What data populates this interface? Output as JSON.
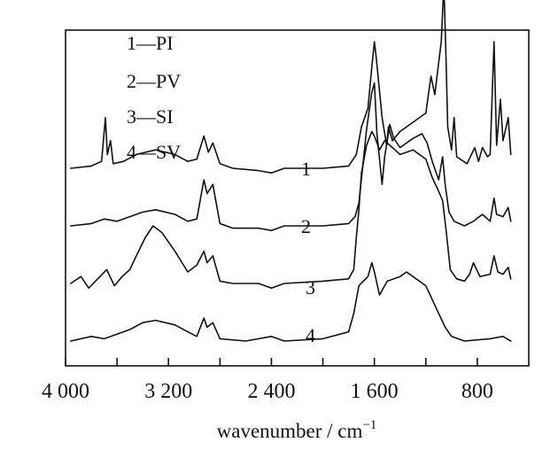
{
  "chart_data": {
    "type": "line",
    "title": "",
    "xlabel": "wavenumber / cm",
    "xlabel_superscript": "−1",
    "ylabel": "",
    "xlim": [
      4000,
      400
    ],
    "x_reversed": true,
    "grid": false,
    "legend_position": "top-left",
    "x_ticks": [
      {
        "value": 4000,
        "label": "4 000"
      },
      {
        "value": 3200,
        "label": "3 200"
      },
      {
        "value": 2400,
        "label": "2 400"
      },
      {
        "value": 1600,
        "label": "1 600"
      },
      {
        "value": 800,
        "label": "800"
      }
    ],
    "legend": [
      "1—PI",
      "2—PV",
      "3—SI",
      "4—SV"
    ],
    "series": [
      {
        "name": "1",
        "baseline": 0.6,
        "points": [
          [
            3960,
            0
          ],
          [
            3800,
            0.01
          ],
          [
            3720,
            0.03
          ],
          [
            3690,
            0.22
          ],
          [
            3675,
            0.06
          ],
          [
            3650,
            0.12
          ],
          [
            3630,
            0.02
          ],
          [
            3550,
            0.03
          ],
          [
            3450,
            0.06
          ],
          [
            3300,
            0.08
          ],
          [
            3150,
            0.06
          ],
          [
            3050,
            0.03
          ],
          [
            2980,
            0.04
          ],
          [
            2925,
            0.14
          ],
          [
            2890,
            0.07
          ],
          [
            2855,
            0.11
          ],
          [
            2800,
            0.02
          ],
          [
            2700,
            0
          ],
          [
            2500,
            -0.01
          ],
          [
            2400,
            -0.02
          ],
          [
            2300,
            0
          ],
          [
            2000,
            0
          ],
          [
            1800,
            0.01
          ],
          [
            1740,
            0.06
          ],
          [
            1700,
            0.18
          ],
          [
            1650,
            0.26
          ],
          [
            1620,
            0.44
          ],
          [
            1600,
            0.55
          ],
          [
            1585,
            0.48
          ],
          [
            1540,
            0.22
          ],
          [
            1505,
            0.1
          ],
          [
            1490,
            0.18
          ],
          [
            1460,
            0.12
          ],
          [
            1400,
            0.16
          ],
          [
            1300,
            0.2
          ],
          [
            1200,
            0.24
          ],
          [
            1160,
            0.4
          ],
          [
            1130,
            0.32
          ],
          [
            1080,
            0.55
          ],
          [
            1060,
            0.8
          ],
          [
            1045,
            0.52
          ],
          [
            1030,
            0.18
          ],
          [
            1000,
            0.08
          ],
          [
            980,
            0.22
          ],
          [
            960,
            0.05
          ],
          [
            880,
            0.02
          ],
          [
            820,
            0.09
          ],
          [
            790,
            0.03
          ],
          [
            760,
            0.09
          ],
          [
            720,
            0.05
          ],
          [
            700,
            0.06
          ],
          [
            670,
            0.55
          ],
          [
            650,
            0.1
          ],
          [
            620,
            0.3
          ],
          [
            600,
            0.12
          ],
          [
            560,
            0.22
          ],
          [
            540,
            0.06
          ]
        ]
      },
      {
        "name": "2",
        "baseline": 0.85,
        "points": [
          [
            3960,
            0
          ],
          [
            3800,
            0.01
          ],
          [
            3700,
            0.03
          ],
          [
            3600,
            0.02
          ],
          [
            3500,
            0.04
          ],
          [
            3400,
            0.06
          ],
          [
            3300,
            0.07
          ],
          [
            3150,
            0.05
          ],
          [
            3050,
            0.02
          ],
          [
            2980,
            0.03
          ],
          [
            2925,
            0.2
          ],
          [
            2900,
            0.14
          ],
          [
            2855,
            0.18
          ],
          [
            2800,
            0.01
          ],
          [
            2700,
            -0.01
          ],
          [
            2500,
            -0.01
          ],
          [
            2400,
            -0.02
          ],
          [
            2300,
            0
          ],
          [
            2000,
            0
          ],
          [
            1800,
            0.01
          ],
          [
            1750,
            0.04
          ],
          [
            1720,
            0.1
          ],
          [
            1690,
            0.26
          ],
          [
            1660,
            0.42
          ],
          [
            1620,
            0.58
          ],
          [
            1600,
            0.62
          ],
          [
            1580,
            0.4
          ],
          [
            1540,
            0.18
          ],
          [
            1520,
            0.3
          ],
          [
            1480,
            0.44
          ],
          [
            1450,
            0.38
          ],
          [
            1400,
            0.34
          ],
          [
            1300,
            0.38
          ],
          [
            1230,
            0.4
          ],
          [
            1190,
            0.36
          ],
          [
            1150,
            0.28
          ],
          [
            1100,
            0.2
          ],
          [
            1070,
            0.3
          ],
          [
            1050,
            0.18
          ],
          [
            1020,
            0.06
          ],
          [
            980,
            0.02
          ],
          [
            900,
            0
          ],
          [
            830,
            0.02
          ],
          [
            760,
            0.05
          ],
          [
            700,
            0.02
          ],
          [
            670,
            0.12
          ],
          [
            650,
            0.05
          ],
          [
            600,
            0.04
          ],
          [
            560,
            0.08
          ],
          [
            540,
            0.02
          ]
        ]
      },
      {
        "name": "3",
        "baseline": 1.1,
        "points": [
          [
            3960,
            0
          ],
          [
            3880,
            0.03
          ],
          [
            3820,
            -0.02
          ],
          [
            3750,
            0.02
          ],
          [
            3680,
            0.06
          ],
          [
            3620,
            -0.01
          ],
          [
            3560,
            0.03
          ],
          [
            3500,
            0.06
          ],
          [
            3450,
            0.12
          ],
          [
            3380,
            0.2
          ],
          [
            3320,
            0.25
          ],
          [
            3250,
            0.22
          ],
          [
            3150,
            0.14
          ],
          [
            3050,
            0.05
          ],
          [
            2980,
            0.08
          ],
          [
            2925,
            0.14
          ],
          [
            2900,
            0.09
          ],
          [
            2855,
            0.12
          ],
          [
            2800,
            0.01
          ],
          [
            2700,
            0
          ],
          [
            2500,
            0
          ],
          [
            2400,
            -0.02
          ],
          [
            2300,
            0
          ],
          [
            2000,
            0.01
          ],
          [
            1800,
            0.02
          ],
          [
            1760,
            0.06
          ],
          [
            1740,
            0.2
          ],
          [
            1720,
            0.32
          ],
          [
            1700,
            0.48
          ],
          [
            1660,
            0.6
          ],
          [
            1620,
            0.66
          ],
          [
            1600,
            0.64
          ],
          [
            1560,
            0.58
          ],
          [
            1520,
            0.62
          ],
          [
            1480,
            0.6
          ],
          [
            1400,
            0.56
          ],
          [
            1300,
            0.58
          ],
          [
            1200,
            0.54
          ],
          [
            1150,
            0.46
          ],
          [
            1100,
            0.4
          ],
          [
            1070,
            0.36
          ],
          [
            1040,
            0.22
          ],
          [
            1010,
            0.06
          ],
          [
            960,
            0.02
          ],
          [
            900,
            0.01
          ],
          [
            860,
            0.04
          ],
          [
            830,
            0.09
          ],
          [
            780,
            0.03
          ],
          [
            700,
            0.04
          ],
          [
            670,
            0.12
          ],
          [
            640,
            0.05
          ],
          [
            600,
            0.04
          ],
          [
            560,
            0.07
          ],
          [
            540,
            0.02
          ]
        ]
      },
      {
        "name": "4",
        "baseline": 1.35,
        "points": [
          [
            3960,
            0
          ],
          [
            3800,
            0.02
          ],
          [
            3700,
            0.01
          ],
          [
            3600,
            0.03
          ],
          [
            3500,
            0.05
          ],
          [
            3400,
            0.08
          ],
          [
            3300,
            0.09
          ],
          [
            3150,
            0.07
          ],
          [
            3050,
            0.04
          ],
          [
            2980,
            0.02
          ],
          [
            2925,
            0.1
          ],
          [
            2900,
            0.06
          ],
          [
            2855,
            0.08
          ],
          [
            2800,
            0.01
          ],
          [
            2600,
            0
          ],
          [
            2400,
            0.02
          ],
          [
            2300,
            0
          ],
          [
            2000,
            0.01
          ],
          [
            1800,
            0.04
          ],
          [
            1760,
            0.12
          ],
          [
            1720,
            0.24
          ],
          [
            1650,
            0.28
          ],
          [
            1620,
            0.34
          ],
          [
            1600,
            0.3
          ],
          [
            1560,
            0.2
          ],
          [
            1500,
            0.26
          ],
          [
            1400,
            0.28
          ],
          [
            1350,
            0.3
          ],
          [
            1300,
            0.28
          ],
          [
            1200,
            0.24
          ],
          [
            1150,
            0.18
          ],
          [
            1100,
            0.12
          ],
          [
            1050,
            0.06
          ],
          [
            1000,
            0.02
          ],
          [
            900,
            0
          ],
          [
            700,
            0.01
          ],
          [
            600,
            0.02
          ],
          [
            540,
            0
          ]
        ]
      }
    ]
  }
}
